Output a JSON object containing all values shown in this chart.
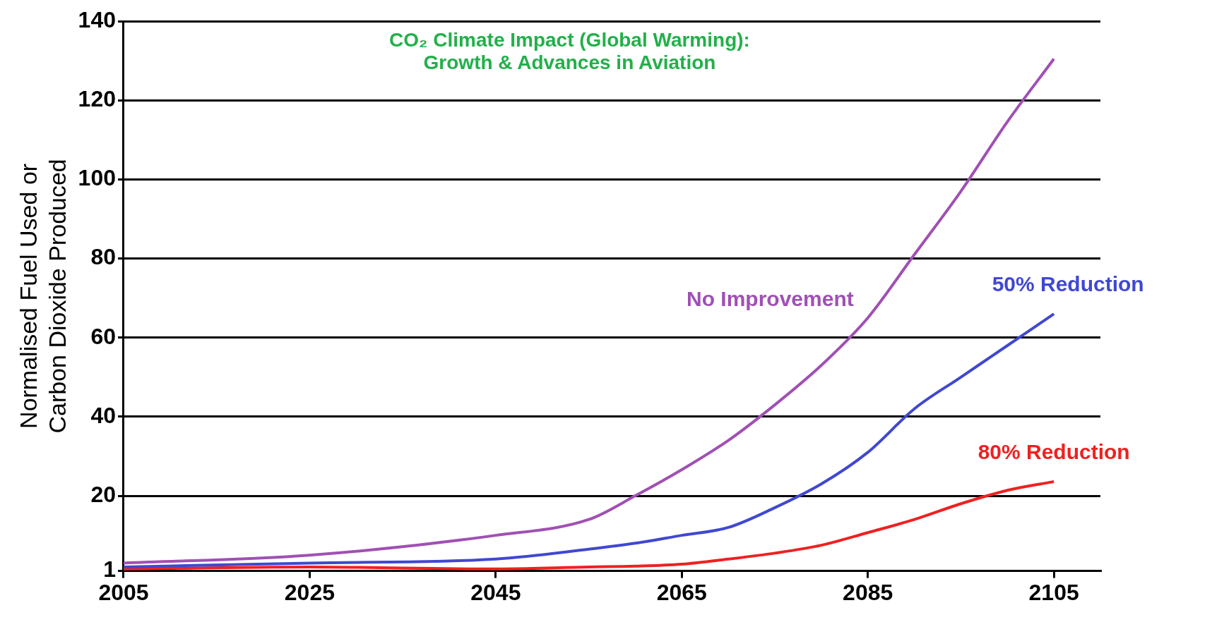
{
  "chart_data": {
    "type": "line",
    "title": "CO₂ Climate Impact (Global Warming):\nGrowth & Advances in Aviation",
    "ylabel": "Normalised Fuel Used or\nCarbon Dioxide Produced",
    "x": [
      2005,
      2025,
      2045,
      2055,
      2060,
      2065,
      2070,
      2075,
      2080,
      2085,
      2090,
      2095,
      2100,
      2105
    ],
    "series": [
      {
        "name": "No Improvement",
        "color": "#a050b4",
        "values": [
          3,
          5,
          10,
          14,
          20,
          26.6,
          34,
          43,
          53,
          65,
          81,
          97,
          114.6,
          130.5
        ]
      },
      {
        "name": "50% Reduction",
        "color": "#4048d0",
        "values": [
          2,
          3,
          4,
          6.5,
          8,
          10,
          12,
          17,
          23,
          31,
          42,
          50,
          58,
          66
        ]
      },
      {
        "name": "80% Reduction",
        "color": "#f02020",
        "values": [
          1.5,
          2,
          1.5,
          2,
          2.2,
          2.7,
          4,
          5.5,
          7.5,
          10.7,
          14,
          18,
          21.4,
          23.6
        ]
      }
    ],
    "xlim": [
      2005,
      2110
    ],
    "xticks": [
      2005,
      2025,
      2045,
      2065,
      2085,
      2105
    ],
    "ylim": [
      1,
      140
    ],
    "yticks": [
      1,
      20,
      40,
      60,
      80,
      100,
      120,
      140
    ],
    "grid": "y",
    "legend": false,
    "marker": "none",
    "line_style": "solid"
  }
}
